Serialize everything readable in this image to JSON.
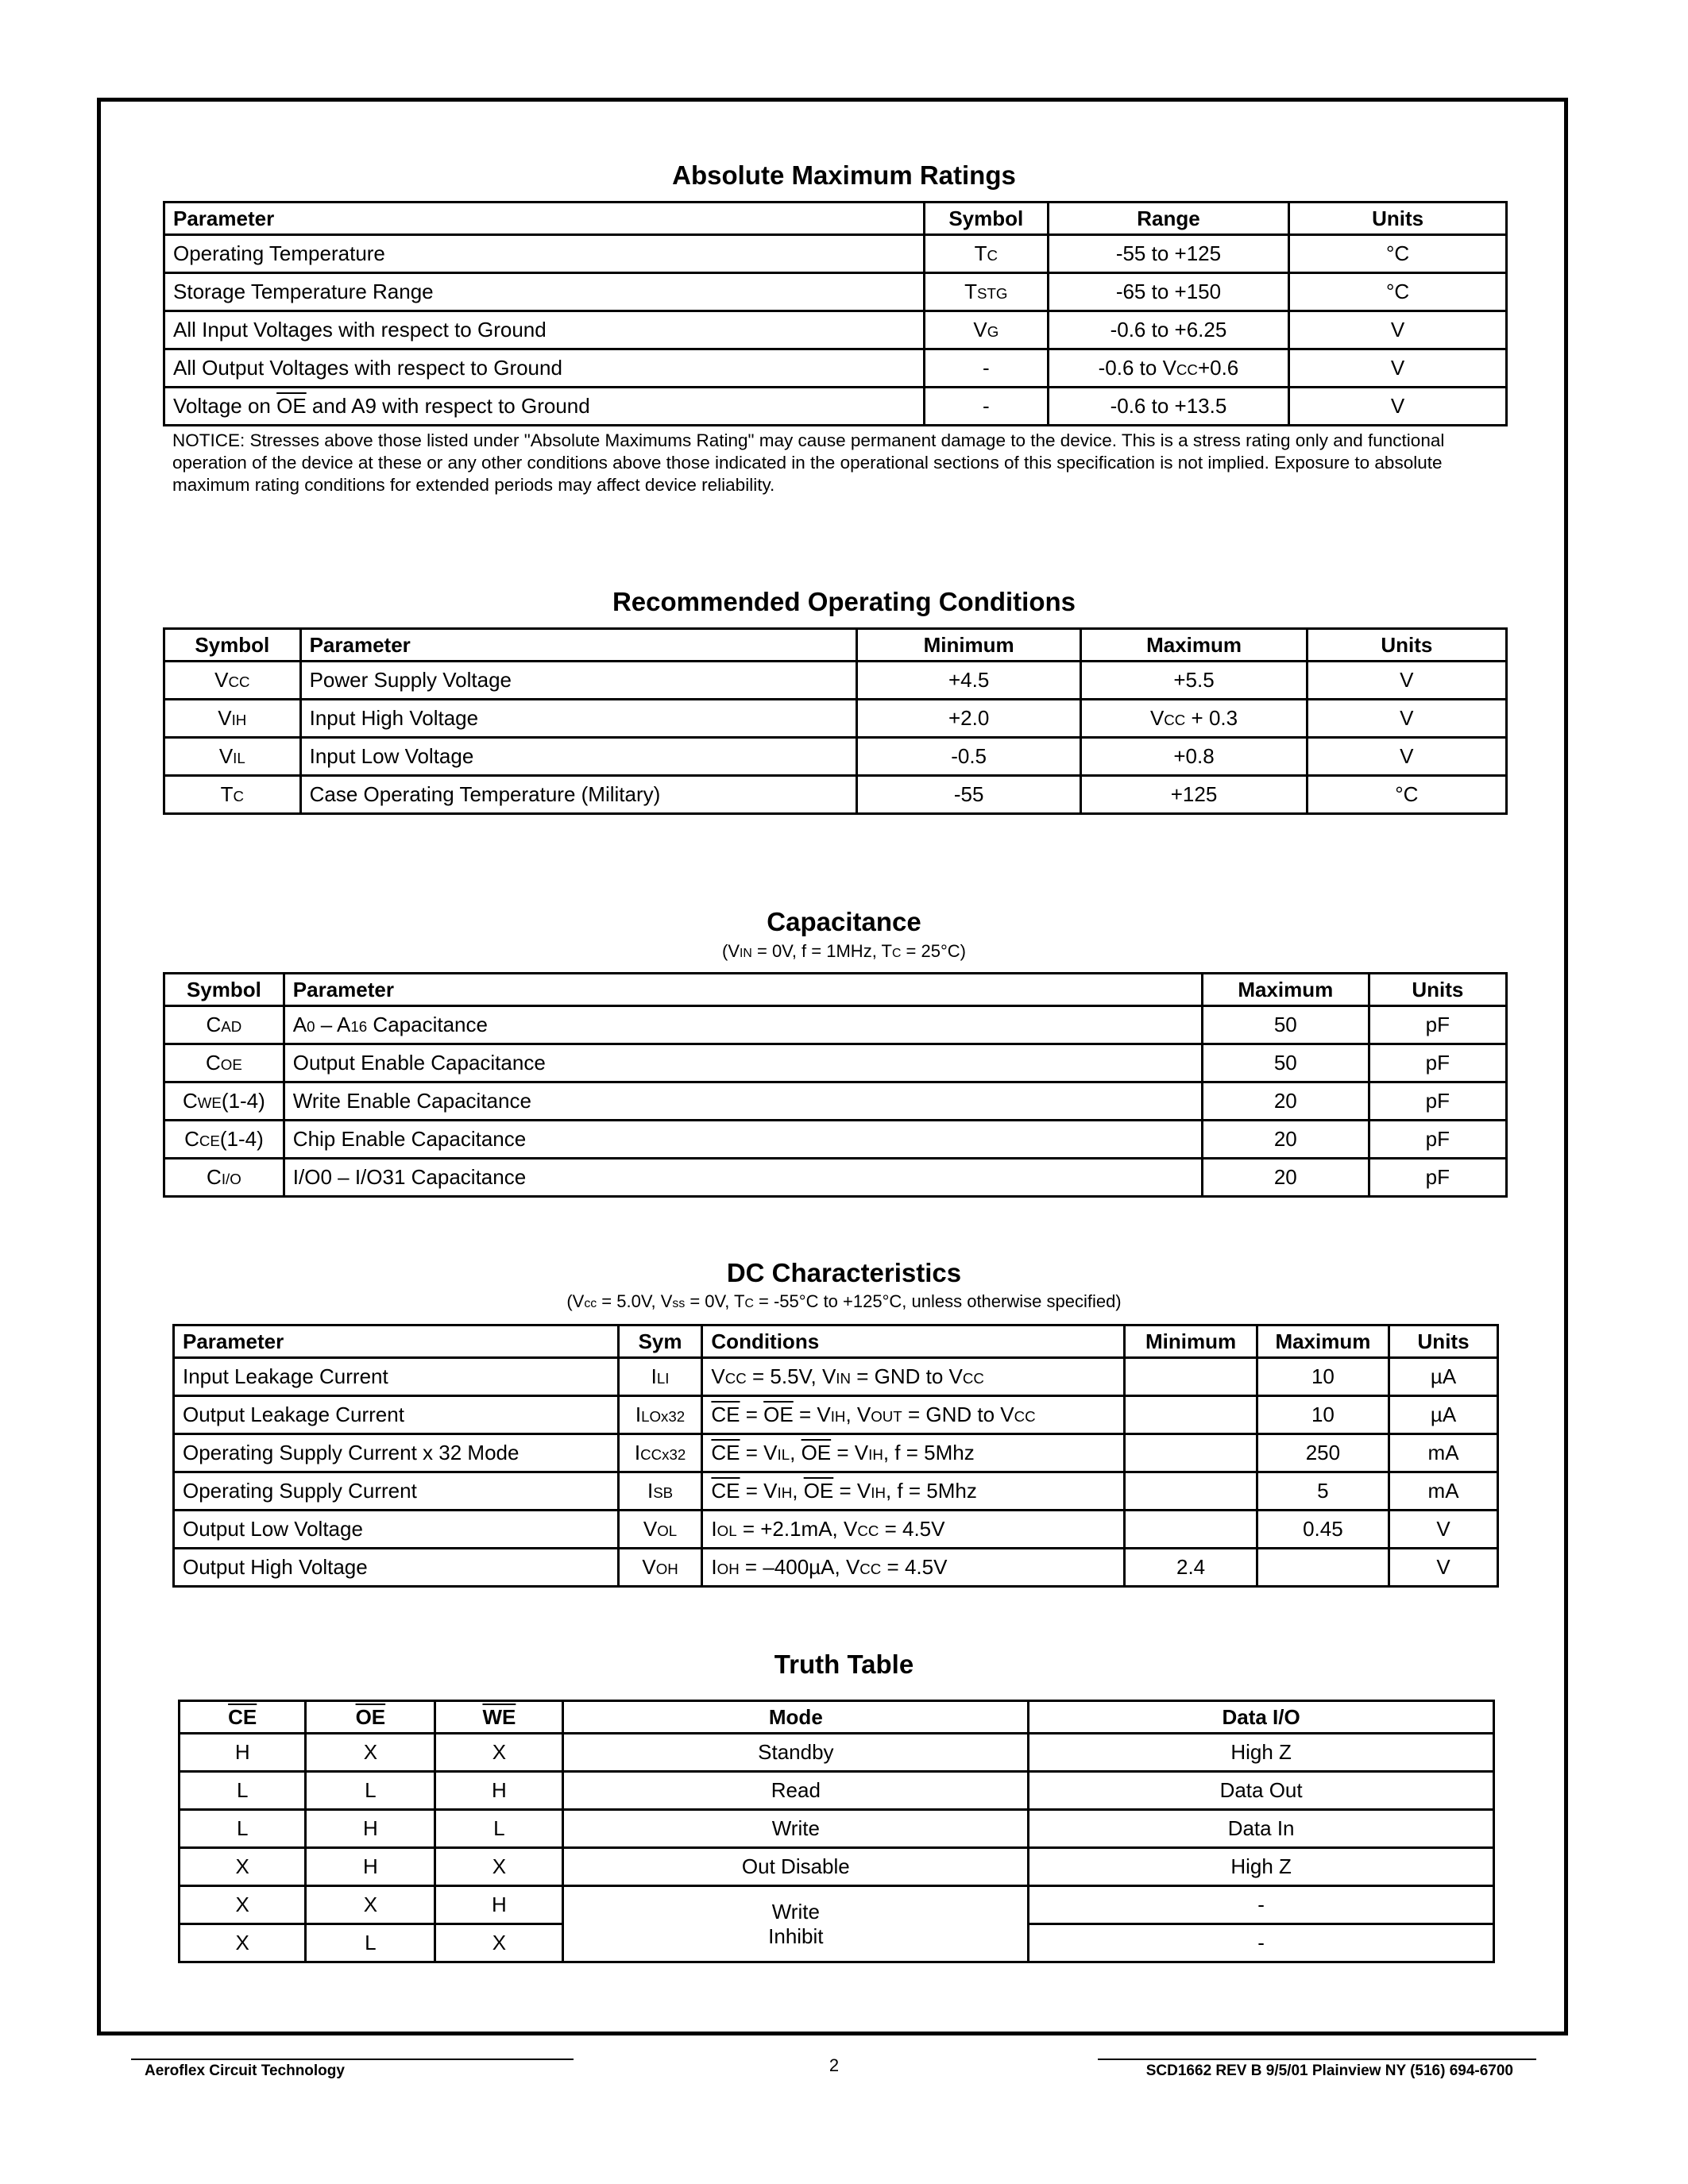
{
  "absolute_maximum_ratings": {
    "title": "Absolute Maximum Ratings",
    "header": [
      "Parameter",
      "Symbol",
      "Range",
      "Units"
    ],
    "rows": [
      [
        "Operating Temperature",
        [
          "T",
          {
            "sub": "C"
          }
        ],
        "-55 to +125",
        "°C"
      ],
      [
        "Storage Temperature Range",
        [
          "T",
          {
            "sub": "STG"
          }
        ],
        "-65 to +150",
        "°C"
      ],
      [
        "All Input Voltages with respect to Ground",
        [
          "V",
          {
            "sub": "G"
          }
        ],
        "-0.6 to +6.25",
        "V"
      ],
      [
        "All Output Voltages with respect to Ground",
        "-",
        [
          "-0.6 to V",
          {
            "sub": "CC"
          },
          "+0.6"
        ],
        "V"
      ],
      [
        [
          "Voltage on ",
          {
            "over": "OE"
          },
          " and A9 with respect to Ground"
        ],
        "-",
        "-0.6 to +13.5",
        "V"
      ]
    ],
    "notice": "NOTICE: Stresses above those listed under \"Absolute Maximums Rating\" may cause permanent damage to the device. This is a stress rating only and functional operation of the device at these or any other conditions above those indicated in the operational sections of this specification is not implied. Exposure to absolute maximum rating conditions for extended periods may affect device reliability."
  },
  "recommended_operating_conditions": {
    "title": "Recommended Operating Conditions",
    "header": [
      "Symbol",
      "Parameter",
      "Minimum",
      "Maximum",
      "Units"
    ],
    "rows": [
      [
        [
          "V",
          {
            "sub": "CC"
          }
        ],
        "Power Supply Voltage",
        "+4.5",
        "+5.5",
        "V"
      ],
      [
        [
          "V",
          {
            "sub": "IH"
          }
        ],
        "Input High Voltage",
        "+2.0",
        [
          "V",
          {
            "sub": "CC"
          },
          " + 0.3"
        ],
        "V"
      ],
      [
        [
          "V",
          {
            "sub": "IL"
          }
        ],
        "Input Low Voltage",
        "-0.5",
        "+0.8",
        "V"
      ],
      [
        [
          "T",
          {
            "sub": "C"
          }
        ],
        "Case Operating Temperature (Military)",
        "-55",
        "+125",
        "°C"
      ]
    ]
  },
  "capacitance": {
    "title": "Capacitance",
    "subtitle": [
      "(V",
      {
        "sub": "IN"
      },
      " = 0V, f = 1MHz, T",
      {
        "sub": "C"
      },
      " = 25°C)"
    ],
    "header": [
      "Symbol",
      "Parameter",
      "Maximum",
      "Units"
    ],
    "rows": [
      [
        [
          "C",
          {
            "sub": "AD"
          }
        ],
        [
          "A",
          {
            "sub": "0"
          },
          " – A",
          {
            "sub": "16"
          },
          " Capacitance"
        ],
        "50",
        "pF"
      ],
      [
        [
          "C",
          {
            "sub": "OE"
          }
        ],
        "Output Enable Capacitance",
        "50",
        "pF"
      ],
      [
        [
          "C",
          {
            "sub": "WE"
          },
          "(1-4)"
        ],
        "Write Enable Capacitance",
        "20",
        "pF"
      ],
      [
        [
          "C",
          {
            "sub": "CE"
          },
          "(1-4)"
        ],
        "Chip Enable Capacitance",
        "20",
        "pF"
      ],
      [
        [
          "C",
          {
            "sub": "I/O"
          }
        ],
        "I/O0 – I/O31 Capacitance",
        "20",
        "pF"
      ]
    ]
  },
  "dc_characteristics": {
    "title": "DC Characteristics",
    "subtitle": [
      "(V",
      {
        "sub": "cc"
      },
      " = 5.0V, V",
      {
        "sub": "ss"
      },
      " = 0V, T",
      {
        "sub": "C"
      },
      " = -55°C to +125°C, unless otherwise specified)"
    ],
    "header": [
      "Parameter",
      "Sym",
      "Conditions",
      "Minimum",
      "Maximum",
      "Units"
    ],
    "rows": [
      [
        "Input Leakage Current",
        [
          "I",
          {
            "sub": "LI"
          }
        ],
        [
          "V",
          {
            "sub": "CC"
          },
          " = 5.5V, V",
          {
            "sub": "IN"
          },
          " = GND to V",
          {
            "sub": "CC"
          }
        ],
        null,
        "10",
        "µA"
      ],
      [
        "Output Leakage Current",
        [
          "I",
          {
            "sub": "LOx32"
          }
        ],
        [
          {
            "over": "CE"
          },
          " = ",
          {
            "over": "OE"
          },
          " = V",
          {
            "sub": "IH"
          },
          ", V",
          {
            "sub": "OUT"
          },
          " = GND to V",
          {
            "sub": "CC"
          }
        ],
        null,
        "10",
        "µA"
      ],
      [
        "Operating Supply Current x 32 Mode",
        [
          "I",
          {
            "sub": "CCx32"
          }
        ],
        [
          {
            "over": "CE"
          },
          " = V",
          {
            "sub": "IL"
          },
          ", ",
          {
            "over": "OE"
          },
          " = V",
          {
            "sub": "IH"
          },
          ", f = 5Mhz"
        ],
        null,
        "250",
        "mA"
      ],
      [
        "Operating Supply Current",
        [
          "I",
          {
            "sub": "SB"
          }
        ],
        [
          {
            "over": "CE"
          },
          " = V",
          {
            "sub": "IH"
          },
          ", ",
          {
            "over": "OE"
          },
          " = V",
          {
            "sub": "IH"
          },
          ", f = 5Mhz"
        ],
        null,
        "5",
        "mA"
      ],
      [
        "Output Low Voltage",
        [
          "V",
          {
            "sub": "OL"
          }
        ],
        [
          "I",
          {
            "sub": "OL"
          },
          " = +2.1mA, V",
          {
            "sub": "CC"
          },
          " = 4.5V"
        ],
        null,
        "0.45",
        "V"
      ],
      [
        "Output High Voltage",
        [
          "V",
          {
            "sub": "OH"
          }
        ],
        [
          "I",
          {
            "sub": "OH"
          },
          " = –400µA, V",
          {
            "sub": "CC"
          },
          " = 4.5V"
        ],
        "2.4",
        null,
        "V"
      ]
    ]
  },
  "truth_table": {
    "title": "Truth Table",
    "header": [
      [
        {
          "over": "CE"
        }
      ],
      [
        {
          "over": "OE"
        }
      ],
      [
        {
          "over": "WE"
        }
      ],
      "Mode",
      "Data I/O"
    ],
    "rows": [
      [
        "H",
        "X",
        "X",
        "Standby",
        "High Z"
      ],
      [
        "L",
        "L",
        "H",
        "Read",
        "Data Out"
      ],
      [
        "L",
        "H",
        "L",
        "Write",
        "Data In"
      ],
      [
        "X",
        "H",
        "X",
        "Out Disable",
        "High Z"
      ],
      [
        "X",
        "X",
        "H",
        {
          "lines": [
            "Write",
            "Inhibit"
          ]
        },
        "-"
      ],
      [
        "X",
        "L",
        "X",
        "-"
      ]
    ]
  },
  "footer": {
    "company": "Aeroflex Circuit Technology",
    "page": "2",
    "document": "SCD1662 REV B  9/5/01  Plainview NY (516) 694-6700"
  }
}
